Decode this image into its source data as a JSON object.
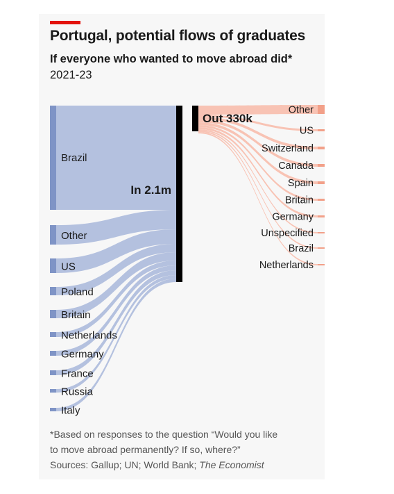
{
  "header": {
    "title": "Portugal, potential flows of graduates",
    "subtitle": "If everyone who wanted to move abroad did*",
    "period": "2021-23"
  },
  "footnote": {
    "line1": "*Based on responses to the question “Would you like",
    "line2": "to move abroad permanently? If so, where?”",
    "sources_prefix": "Sources: Gallup; UN; World Bank; ",
    "sources_italic": "The Economist"
  },
  "colors": {
    "accent_red": "#e3120b",
    "inflow_bar": "#7f94c6",
    "inflow_band": "#b4c1df",
    "outflow_bar": "#f2a089",
    "outflow_band": "#f8c3b4",
    "hub": "#000000"
  },
  "chart_data": {
    "type": "sankey",
    "hub_labels": {
      "inflow": "In 2.1m",
      "outflow": "Out 330k"
    },
    "inflow_total": "2.1m",
    "outflow_total": "330k",
    "inflows": [
      {
        "label": "Brazil"
      },
      {
        "label": "Other"
      },
      {
        "label": "US"
      },
      {
        "label": "Poland"
      },
      {
        "label": "Britain"
      },
      {
        "label": "Netherlands"
      },
      {
        "label": "Germany"
      },
      {
        "label": "France"
      },
      {
        "label": "Russia"
      },
      {
        "label": "Italy"
      }
    ],
    "outflows": [
      {
        "label": "Other"
      },
      {
        "label": "US"
      },
      {
        "label": "Switzerland"
      },
      {
        "label": "Canada"
      },
      {
        "label": "Spain"
      },
      {
        "label": "Britain"
      },
      {
        "label": "Germany"
      },
      {
        "label": "Unspecified"
      },
      {
        "label": "Brazil"
      },
      {
        "label": "Netherlands"
      }
    ]
  }
}
